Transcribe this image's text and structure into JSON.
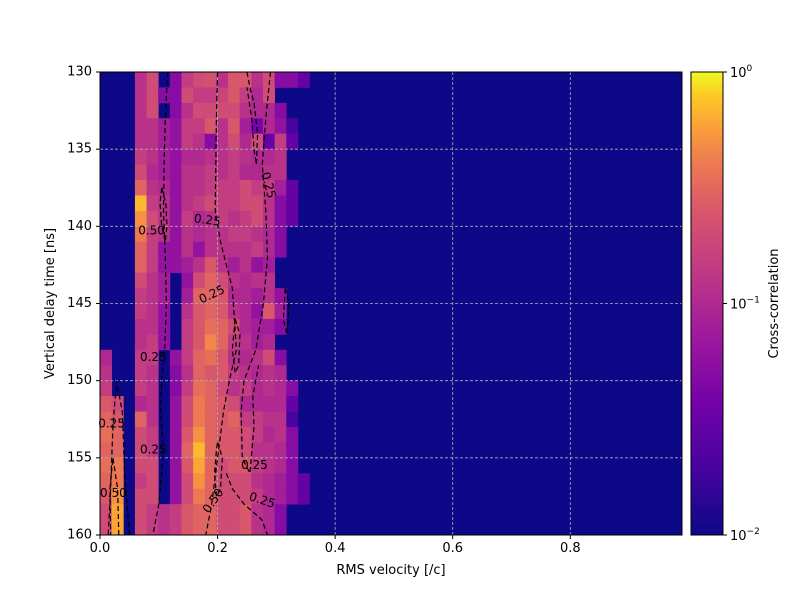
{
  "chart_data": {
    "type": "heatmap",
    "title": "",
    "xlabel": "RMS velocity [/c]",
    "ylabel": "Vertical delay time [ns]",
    "xlim": [
      0.0,
      0.99
    ],
    "ylim": [
      130,
      160
    ],
    "y_inverted": true,
    "x_ticks": [
      "0.0",
      "0.2",
      "0.4",
      "0.6",
      "0.8"
    ],
    "x_tick_values": [
      0.0,
      0.2,
      0.4,
      0.6,
      0.8
    ],
    "y_ticks": [
      "130",
      "135",
      "140",
      "145",
      "150",
      "155",
      "160"
    ],
    "y_tick_values": [
      130,
      135,
      140,
      145,
      150,
      155,
      160
    ],
    "grid": true,
    "colormap": "plasma",
    "color_scale": "log",
    "colorbar": {
      "label": "Cross-correlation",
      "range": [
        0.01,
        1
      ],
      "ticks": [
        {
          "base": "10",
          "exp": "0",
          "value": 1
        },
        {
          "base": "10",
          "exp": "−1",
          "value": 0.1
        },
        {
          "base": "10",
          "exp": "−2",
          "value": 0.01
        }
      ]
    },
    "grid_cols": 50,
    "grid_rows": 30,
    "cell_width": 0.0198,
    "cell_height": 1.0,
    "floor_value": 0.01,
    "cells": [
      {
        "row": 0,
        "values": {
          "3": 0.12,
          "4": 0.2,
          "6": 0.05,
          "7": 0.15,
          "8": 0.2,
          "9": 0.22,
          "10": 0.12,
          "11": 0.25,
          "12": 0.25,
          "13": 0.12,
          "14": 0.2,
          "15": 0.05,
          "16": 0.05,
          "17": 0.03
        }
      },
      {
        "row": 1,
        "values": {
          "3": 0.12,
          "4": 0.2,
          "5": 0.05,
          "6": 0.05,
          "7": 0.2,
          "8": 0.15,
          "9": 0.15,
          "10": 0.18,
          "11": 0.25,
          "12": 0.15,
          "13": 0.1,
          "14": 0.2
        }
      },
      {
        "row": 2,
        "values": {
          "3": 0.12,
          "4": 0.2,
          "6": 0.05,
          "7": 0.12,
          "8": 0.2,
          "9": 0.2,
          "10": 0.2,
          "11": 0.2,
          "12": 0.12,
          "13": 0.1,
          "14": 0.1,
          "15": 0.05
        }
      },
      {
        "row": 3,
        "values": {
          "3": 0.12,
          "4": 0.12,
          "5": 0.08,
          "6": 0.06,
          "7": 0.15,
          "8": 0.15,
          "9": 0.25,
          "10": 0.12,
          "11": 0.25,
          "12": 0.08,
          "13": 0.04,
          "14": 0.1,
          "15": 0.06,
          "16": 0.02
        }
      },
      {
        "row": 4,
        "values": {
          "3": 0.12,
          "4": 0.12,
          "5": 0.08,
          "6": 0.06,
          "7": 0.15,
          "8": 0.12,
          "9": 0.05,
          "10": 0.12,
          "11": 0.2,
          "12": 0.1,
          "13": 0.2,
          "14": 0.03,
          "15": 0.15,
          "16": 0.03
        }
      },
      {
        "row": 5,
        "values": {
          "3": 0.15,
          "4": 0.12,
          "5": 0.08,
          "6": 0.06,
          "7": 0.1,
          "8": 0.1,
          "9": 0.12,
          "10": 0.12,
          "11": 0.15,
          "12": 0.12,
          "13": 0.1,
          "14": 0.1,
          "15": 0.12
        }
      },
      {
        "row": 6,
        "values": {
          "3": 0.2,
          "4": 0.1,
          "5": 0.08,
          "6": 0.06,
          "7": 0.12,
          "8": 0.12,
          "9": 0.15,
          "10": 0.12,
          "11": 0.15,
          "12": 0.1,
          "13": 0.1,
          "14": 0.12,
          "15": 0.12
        }
      },
      {
        "row": 7,
        "values": {
          "3": 0.3,
          "4": 0.12,
          "5": 0.1,
          "6": 0.06,
          "7": 0.12,
          "8": 0.12,
          "9": 0.15,
          "10": 0.15,
          "11": 0.15,
          "12": 0.2,
          "13": 0.15,
          "14": 0.15,
          "15": 0.08,
          "16": 0.03
        }
      },
      {
        "row": 8,
        "values": {
          "3": 0.7,
          "4": 0.15,
          "5": 0.12,
          "6": 0.06,
          "7": 0.12,
          "8": 0.15,
          "9": 0.2,
          "10": 0.15,
          "11": 0.15,
          "12": 0.2,
          "13": 0.2,
          "14": 0.12,
          "15": 0.05,
          "16": 0.03
        }
      },
      {
        "row": 9,
        "values": {
          "3": 0.5,
          "4": 0.2,
          "5": 0.12,
          "6": 0.06,
          "7": 0.15,
          "8": 0.1,
          "9": 0.12,
          "10": 0.15,
          "11": 0.12,
          "12": 0.15,
          "13": 0.2,
          "14": 0.12,
          "15": 0.05,
          "16": 0.03
        }
      },
      {
        "row": 10,
        "values": {
          "3": 0.4,
          "4": 0.15,
          "5": 0.12,
          "6": 0.06,
          "7": 0.12,
          "8": 0.1,
          "9": 0.12,
          "10": 0.12,
          "11": 0.15,
          "12": 0.15,
          "13": 0.12,
          "14": 0.1,
          "15": 0.05
        }
      },
      {
        "row": 11,
        "values": {
          "3": 0.3,
          "4": 0.15,
          "5": 0.06,
          "6": 0.06,
          "7": 0.12,
          "8": 0.06,
          "9": 0.12,
          "10": 0.12,
          "11": 0.12,
          "12": 0.12,
          "13": 0.15,
          "14": 0.1,
          "15": 0.05
        }
      },
      {
        "row": 12,
        "values": {
          "3": 0.3,
          "4": 0.15,
          "5": 0.06,
          "6": 0.06,
          "7": 0.08,
          "8": 0.12,
          "9": 0.25,
          "10": 0.12,
          "11": 0.08,
          "12": 0.12,
          "13": 0.06,
          "14": 0.08
        }
      },
      {
        "row": 13,
        "values": {
          "3": 0.2,
          "4": 0.12,
          "5": 0.08,
          "7": 0.06,
          "8": 0.2,
          "9": 0.3,
          "10": 0.2,
          "11": 0.12,
          "12": 0.1,
          "13": 0.12,
          "14": 0.12
        }
      },
      {
        "row": 14,
        "values": {
          "3": 0.15,
          "4": 0.12,
          "5": 0.08,
          "7": 0.08,
          "8": 0.3,
          "9": 0.3,
          "10": 0.25,
          "11": 0.1,
          "12": 0.1,
          "13": 0.08,
          "14": 0.12,
          "15": 0.06
        }
      },
      {
        "row": 15,
        "values": {
          "3": 0.15,
          "4": 0.12,
          "5": 0.06,
          "7": 0.12,
          "8": 0.25,
          "9": 0.3,
          "10": 0.25,
          "11": 0.12,
          "12": 0.1,
          "13": 0.06,
          "14": 0.25,
          "15": 0.08
        }
      },
      {
        "row": 16,
        "values": {
          "3": 0.12,
          "4": 0.12,
          "5": 0.06,
          "7": 0.15,
          "8": 0.25,
          "9": 0.35,
          "10": 0.3,
          "11": 0.2,
          "12": 0.1,
          "13": 0.08,
          "14": 0.08,
          "15": 0.05
        }
      },
      {
        "row": 17,
        "values": {
          "3": 0.12,
          "4": 0.15,
          "5": 0.06,
          "7": 0.15,
          "8": 0.25,
          "9": 0.45,
          "10": 0.3,
          "11": 0.15,
          "12": 0.12,
          "13": 0.08,
          "14": 0.1
        }
      },
      {
        "row": 18,
        "values": {
          "0": 0.1,
          "3": 0.15,
          "4": 0.15,
          "6": 0.06,
          "7": 0.15,
          "8": 0.3,
          "9": 0.35,
          "10": 0.25,
          "11": 0.12,
          "12": 0.1,
          "13": 0.12,
          "14": 0.2,
          "15": 0.05
        }
      },
      {
        "row": 19,
        "values": {
          "0": 0.12,
          "3": 0.15,
          "4": 0.12,
          "6": 0.05,
          "7": 0.12,
          "8": 0.3,
          "9": 0.25,
          "10": 0.25,
          "11": 0.15,
          "12": 0.12,
          "13": 0.1,
          "14": 0.12,
          "15": 0.1
        }
      },
      {
        "row": 20,
        "values": {
          "0": 0.15,
          "3": 0.15,
          "4": 0.12,
          "6": 0.05,
          "7": 0.15,
          "8": 0.35,
          "9": 0.3,
          "10": 0.2,
          "11": 0.12,
          "12": 0.15,
          "13": 0.1,
          "14": 0.12,
          "15": 0.1,
          "16": 0.05
        }
      },
      {
        "row": 21,
        "values": {
          "0": 0.25,
          "1": 0.2,
          "3": 0.1,
          "4": 0.12,
          "6": 0.06,
          "7": 0.2,
          "8": 0.4,
          "9": 0.3,
          "10": 0.25,
          "11": 0.2,
          "12": 0.1,
          "13": 0.1,
          "14": 0.1,
          "15": 0.1,
          "16": 0.03
        }
      },
      {
        "row": 22,
        "values": {
          "0": 0.3,
          "1": 0.25,
          "3": 0.3,
          "4": 0.12,
          "6": 0.06,
          "7": 0.2,
          "8": 0.4,
          "9": 0.3,
          "10": 0.25,
          "11": 0.3,
          "12": 0.15,
          "13": 0.15,
          "14": 0.12,
          "15": 0.12,
          "16": 0.02
        }
      },
      {
        "row": 23,
        "values": {
          "0": 0.35,
          "1": 0.3,
          "3": 0.2,
          "4": 0.15,
          "6": 0.06,
          "7": 0.25,
          "8": 0.5,
          "9": 0.3,
          "10": 0.25,
          "11": 0.25,
          "12": 0.2,
          "13": 0.15,
          "14": 0.1,
          "15": 0.12,
          "16": 0.05
        }
      },
      {
        "row": 24,
        "values": {
          "0": 0.3,
          "1": 0.3,
          "3": 0.2,
          "4": 0.15,
          "6": 0.06,
          "7": 0.3,
          "8": 0.7,
          "9": 0.3,
          "10": 0.25,
          "11": 0.25,
          "12": 0.2,
          "13": 0.12,
          "14": 0.12,
          "15": 0.1,
          "16": 0.05
        }
      },
      {
        "row": 25,
        "values": {
          "0": 0.35,
          "1": 0.4,
          "3": 0.2,
          "4": 0.2,
          "6": 0.06,
          "7": 0.25,
          "8": 0.6,
          "9": 0.3,
          "10": 0.2,
          "11": 0.25,
          "12": 0.25,
          "13": 0.15,
          "14": 0.12,
          "15": 0.1,
          "16": 0.05
        }
      },
      {
        "row": 26,
        "values": {
          "0": 0.3,
          "1": 0.4,
          "3": 0.15,
          "4": 0.2,
          "6": 0.06,
          "7": 0.2,
          "8": 0.5,
          "9": 0.3,
          "10": 0.2,
          "11": 0.2,
          "12": 0.2,
          "13": 0.12,
          "14": 0.1,
          "15": 0.08,
          "16": 0.05,
          "17": 0.03
        }
      },
      {
        "row": 27,
        "values": {
          "0": 0.25,
          "1": 0.5,
          "3": 0.2,
          "4": 0.2,
          "6": 0.06,
          "7": 0.2,
          "8": 0.4,
          "9": 0.3,
          "10": 0.2,
          "11": 0.2,
          "12": 0.2,
          "13": 0.15,
          "14": 0.1,
          "15": 0.08,
          "16": 0.05,
          "17": 0.03
        }
      },
      {
        "row": 28,
        "values": {
          "0": 0.2,
          "1": 0.6,
          "3": 0.2,
          "4": 0.15,
          "5": 0.12,
          "6": 0.15,
          "7": 0.25,
          "8": 0.3,
          "9": 0.3,
          "10": 0.2,
          "11": 0.2,
          "12": 0.25,
          "13": 0.12,
          "14": 0.1,
          "15": 0.05
        }
      },
      {
        "row": 29,
        "values": {
          "0": 0.2,
          "1": 0.6,
          "3": 0.2,
          "4": 0.15,
          "5": 0.12,
          "6": 0.15,
          "7": 0.25,
          "8": 0.3,
          "9": 0.3,
          "10": 0.2,
          "11": 0.2,
          "12": 0.25,
          "13": 0.12,
          "14": 0.1,
          "15": 0.05
        }
      }
    ],
    "contours": [
      {
        "level": 0.25,
        "points": [
          [
            0.115,
            130
          ],
          [
            0.111,
            133
          ],
          [
            0.109,
            136
          ],
          [
            0.108,
            139
          ],
          [
            0.111,
            142
          ],
          [
            0.113,
            145
          ],
          [
            0.11,
            148
          ],
          [
            0.105,
            150
          ],
          [
            0.103,
            152
          ],
          [
            0.107,
            154
          ],
          [
            0.105,
            156
          ],
          [
            0.1,
            158
          ],
          [
            0.09,
            160
          ]
        ]
      },
      {
        "level": 0.25,
        "points": [
          [
            0.05,
            160
          ],
          [
            0.042,
            156
          ],
          [
            0.038,
            152
          ],
          [
            0.028,
            150
          ],
          [
            0.022,
            153
          ],
          [
            0.018,
            157
          ],
          [
            0.014,
            160
          ]
        ]
      },
      {
        "level": 0.25,
        "points": [
          [
            0.29,
            130
          ],
          [
            0.282,
            133
          ],
          [
            0.276,
            136
          ],
          [
            0.282,
            139
          ],
          [
            0.285,
            142
          ],
          [
            0.278,
            145
          ],
          [
            0.265,
            148
          ],
          [
            0.245,
            150
          ],
          [
            0.24,
            152
          ],
          [
            0.242,
            155
          ],
          [
            0.255,
            156
          ],
          [
            0.262,
            153
          ],
          [
            0.26,
            151
          ],
          [
            0.27,
            149
          ]
        ]
      },
      {
        "level": 0.25,
        "points": [
          [
            0.25,
            130
          ],
          [
            0.255,
            131
          ],
          [
            0.262,
            132
          ],
          [
            0.268,
            134
          ],
          [
            0.266,
            136
          ],
          [
            0.262,
            135
          ],
          [
            0.258,
            133
          ],
          [
            0.25,
            131
          ]
        ]
      },
      {
        "level": 0.25,
        "points": [
          [
            0.2,
            130
          ],
          [
            0.198,
            133
          ],
          [
            0.197,
            136
          ],
          [
            0.196,
            139
          ],
          [
            0.205,
            141
          ],
          [
            0.225,
            144
          ],
          [
            0.232,
            148
          ],
          [
            0.22,
            150
          ],
          [
            0.21,
            152
          ],
          [
            0.2,
            155
          ],
          [
            0.19,
            158
          ],
          [
            0.18,
            160
          ]
        ]
      },
      {
        "level": 0.25,
        "points": [
          [
            0.215,
            156
          ],
          [
            0.225,
            157
          ],
          [
            0.245,
            158
          ],
          [
            0.275,
            159
          ],
          [
            0.285,
            160
          ]
        ]
      },
      {
        "level": 0.25,
        "points": [
          [
            0.315,
            144
          ],
          [
            0.322,
            145
          ],
          [
            0.318,
            147
          ],
          [
            0.312,
            146
          ],
          [
            0.315,
            144
          ]
        ]
      },
      {
        "level": 0.5,
        "points": [
          [
            0.105,
            137.5
          ],
          [
            0.112,
            138.5
          ],
          [
            0.114,
            140
          ],
          [
            0.111,
            141
          ],
          [
            0.105,
            140
          ],
          [
            0.102,
            138.5
          ],
          [
            0.105,
            137.5
          ]
        ]
      },
      {
        "level": 0.5,
        "points": [
          [
            0.2,
            154
          ],
          [
            0.208,
            155
          ],
          [
            0.205,
            157
          ],
          [
            0.198,
            157.5
          ],
          [
            0.195,
            156
          ],
          [
            0.198,
            154.5
          ],
          [
            0.2,
            154
          ]
        ]
      },
      {
        "level": 0.5,
        "points": [
          [
            0.23,
            146
          ],
          [
            0.238,
            147
          ],
          [
            0.236,
            149
          ],
          [
            0.23,
            149.5
          ],
          [
            0.225,
            148
          ],
          [
            0.23,
            146
          ]
        ]
      },
      {
        "level": 0.5,
        "points": [
          [
            0.032,
            160
          ],
          [
            0.03,
            157
          ],
          [
            0.022,
            155
          ],
          [
            0.017,
            157
          ],
          [
            0.018,
            160
          ]
        ]
      }
    ],
    "contour_labels": [
      {
        "text": "0.25",
        "x": 0.28,
        "y": 136.5,
        "angle": 75
      },
      {
        "text": "0.25",
        "x": 0.16,
        "y": 139.5,
        "angle": 8
      },
      {
        "text": "0.50",
        "x": 0.065,
        "y": 140.3,
        "angle": 0
      },
      {
        "text": "0.25",
        "x": 0.17,
        "y": 144.8,
        "angle": -25
      },
      {
        "text": "0.25",
        "x": 0.068,
        "y": 148.5,
        "angle": 0
      },
      {
        "text": "0.25",
        "x": -0.003,
        "y": 152.8,
        "angle": 0
      },
      {
        "text": "0.25",
        "x": 0.068,
        "y": 154.5,
        "angle": 0
      },
      {
        "text": "0.25",
        "x": 0.24,
        "y": 155.5,
        "angle": 0
      },
      {
        "text": "0.50",
        "x": 0.0,
        "y": 157.3,
        "angle": 0
      },
      {
        "text": "0.25",
        "x": 0.254,
        "y": 157.5,
        "angle": 18
      },
      {
        "text": "0.50",
        "x": 0.18,
        "y": 158.5,
        "angle": -55
      }
    ]
  }
}
